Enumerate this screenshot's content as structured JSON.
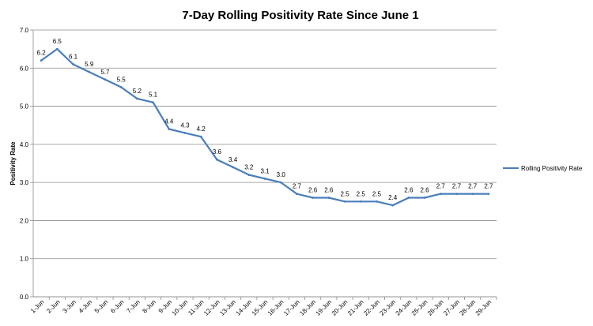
{
  "chart_data": {
    "type": "line",
    "title": "7-Day Rolling Positivity Rate Since June 1",
    "xlabel": "",
    "ylabel": "Positivity Rate",
    "ylim": [
      0,
      7
    ],
    "yticks": [
      "0.0",
      "1.0",
      "2.0",
      "3.0",
      "4.0",
      "5.0",
      "6.0",
      "7.0"
    ],
    "grid": "horizontal",
    "legend_position": "right",
    "categories": [
      "1-Jun",
      "2-Jun",
      "3-Jun",
      "4-Jun",
      "5-Jun",
      "6-Jun",
      "7-Jun",
      "8-Jun",
      "9-Jun",
      "10-Jun",
      "11-Jun",
      "12-Jun",
      "13-Jun",
      "14-Jun",
      "15-Jun",
      "16-Jun",
      "17-Jun",
      "18-Jun",
      "19-Jun",
      "20-Jun",
      "21-Jun",
      "22-Jun",
      "23-Jun",
      "24-Jun",
      "25-Jun",
      "26-Jun",
      "27-Jun",
      "28-Jun",
      "29-Jun"
    ],
    "series": [
      {
        "name": "Rolling Positivity Rate",
        "color": "#4a7ebb",
        "values": [
          6.2,
          6.5,
          6.1,
          5.9,
          5.7,
          5.5,
          5.2,
          5.1,
          4.4,
          4.3,
          4.2,
          3.6,
          3.4,
          3.2,
          3.1,
          3.0,
          2.7,
          2.6,
          2.6,
          2.5,
          2.5,
          2.5,
          2.4,
          2.6,
          2.6,
          2.7,
          2.7,
          2.7,
          2.7
        ],
        "labels": [
          "6.2",
          "6.5",
          "6.1",
          "5.9",
          "5.7",
          "5.5",
          "5.2",
          "5.1",
          "4.4",
          "4.3",
          "4.2",
          "3.6",
          "3.4",
          "3.2",
          "3.1",
          "3.0",
          "2.7",
          "2.6",
          "2.6",
          "2.5",
          "2.5",
          "2.5",
          "2.4",
          "2.6",
          "2.6",
          "2.7",
          "2.7",
          "2.7",
          "2.7"
        ]
      }
    ]
  }
}
